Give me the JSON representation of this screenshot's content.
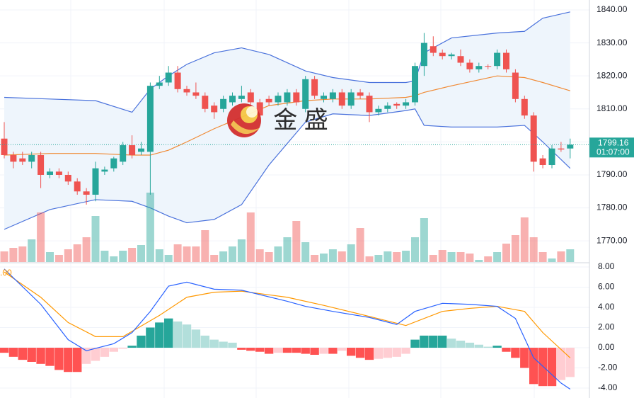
{
  "watermark": "金 盛",
  "chart_data": [
    {
      "type": "candlestick",
      "open": [
        1801,
        1796,
        1795,
        1794,
        1796,
        1790,
        1791,
        1790,
        1788,
        1785,
        1784,
        1791,
        1792,
        1794,
        1799,
        1797,
        1797,
        1817,
        1818,
        1821,
        1816,
        1815,
        1814,
        1811,
        1810,
        1812,
        1813,
        1815,
        1812,
        1813,
        1812,
        1812,
        1815,
        1810,
        1819,
        1813,
        1813,
        1815,
        1811,
        1815,
        1814,
        1809,
        1810,
        1811.5,
        1811,
        1812,
        1823,
        1829,
        1827,
        1826,
        1826,
        1824,
        1822,
        1823,
        1823,
        1827,
        1821,
        1813,
        1808,
        1795,
        1793,
        1798,
        1798
      ],
      "high": [
        1806,
        1797,
        1797,
        1797,
        1797,
        1792,
        1792,
        1791,
        1789,
        1786,
        1794,
        1792.5,
        1795.5,
        1800,
        1802,
        1800,
        1818,
        1820,
        1823,
        1823,
        1817,
        1818,
        1815,
        1812,
        1814,
        1815,
        1817,
        1816,
        1813,
        1814,
        1815,
        1816,
        1816,
        1820,
        1820,
        1815,
        1816,
        1816,
        1816,
        1816,
        1815,
        1811,
        1812,
        1812,
        1813,
        1824,
        1833,
        1832,
        1828,
        1827,
        1828,
        1825,
        1824,
        1823.5,
        1828,
        1828,
        1822,
        1814,
        1809,
        1796,
        1799,
        1800,
        1801
      ],
      "low": [
        1795,
        1792,
        1793,
        1792,
        1786,
        1789,
        1789,
        1787,
        1784,
        1781,
        1782,
        1790,
        1791,
        1793,
        1795,
        1796,
        1784,
        1816,
        1817,
        1815,
        1814,
        1813,
        1809,
        1807,
        1809,
        1811,
        1812,
        1811,
        1807,
        1811,
        1811,
        1811,
        1811,
        1809,
        1813,
        1812,
        1812,
        1810,
        1810,
        1813,
        1806,
        1808,
        1809,
        1810,
        1810,
        1811,
        1820,
        1826,
        1825,
        1825,
        1823,
        1821,
        1821,
        1822,
        1822,
        1821,
        1812,
        1807,
        1791,
        1792,
        1792,
        1797,
        1795
      ],
      "close": [
        1796,
        1794,
        1794,
        1796,
        1790,
        1791,
        1790,
        1788,
        1785,
        1784,
        1792,
        1791.6,
        1795,
        1799,
        1796,
        1798,
        1817,
        1818,
        1821,
        1816,
        1815,
        1814,
        1810,
        1809,
        1813,
        1814,
        1814,
        1812,
        1808,
        1812,
        1814,
        1815,
        1812,
        1819,
        1814,
        1814,
        1815,
        1811,
        1815,
        1814,
        1809,
        1810,
        1811,
        1811,
        1812,
        1823,
        1830,
        1827,
        1826,
        1826.5,
        1824,
        1822,
        1823,
        1822.8,
        1827,
        1822,
        1813,
        1808,
        1794,
        1793,
        1798,
        1797.7,
        1799.16
      ],
      "volume": [
        15,
        20,
        22,
        32,
        70,
        14,
        10,
        18,
        25,
        35,
        65,
        16,
        8,
        16,
        20,
        24,
        98,
        18,
        10,
        25,
        22,
        22,
        45,
        10,
        15,
        22,
        32,
        70,
        18,
        14,
        22,
        35,
        58,
        28,
        10,
        12,
        18,
        15,
        25,
        48,
        8,
        10,
        15,
        14,
        16,
        35,
        62,
        10,
        17,
        14,
        14,
        12,
        3,
        8,
        14,
        26,
        38,
        63,
        35,
        14,
        5,
        15,
        18
      ],
      "bands": {
        "x": [
          0,
          5,
          10,
          14,
          16,
          18,
          20,
          23,
          26,
          29,
          33,
          36,
          40,
          44,
          45,
          46,
          49,
          54,
          57,
          59,
          62
        ],
        "upper": [
          1813.5,
          1813,
          1812.5,
          1809,
          1816,
          1820,
          1823.5,
          1827,
          1828.5,
          1826.5,
          1821.5,
          1819.5,
          1818,
          1818,
          1818.5,
          1827,
          1831.5,
          1833,
          1833.5,
          1837.5,
          1839.4
        ],
        "basis": [
          1796,
          1796.5,
          1796.5,
          1796,
          1796,
          1797.5,
          1800,
          1804,
          1807.5,
          1811,
          1812.5,
          1813,
          1813,
          1813.5,
          1814,
          1815,
          1817,
          1820,
          1819.5,
          1818,
          1815.5
        ],
        "lower": [
          1773.5,
          1779.5,
          1782.5,
          1782,
          1780,
          1777.5,
          1775.5,
          1776.5,
          1781,
          1793,
          1806,
          1808.5,
          1808,
          1809.5,
          1810,
          1805,
          1804.5,
          1804.5,
          1805,
          1800,
          1792
        ]
      },
      "ylim": [
        1763.6,
        1843
      ],
      "yticks": [
        {
          "value": 1770,
          "label": "1770.00"
        },
        {
          "value": 1780,
          "label": "1780.00"
        },
        {
          "value": 1790,
          "label": "1790.00"
        },
        {
          "value": 1800,
          "label": "1800.00"
        },
        {
          "value": 1810,
          "label": "1810.00"
        },
        {
          "value": 1820,
          "label": "1820.00"
        },
        {
          "value": 1830,
          "label": "1830.00"
        },
        {
          "value": 1840,
          "label": "1840.00"
        }
      ],
      "countdown": "01:07:00",
      "grid": true,
      "colors": {
        "up": "#26a69a",
        "down": "#ef5350",
        "band": "#4a72dc",
        "basis": "#f08a35",
        "band_fill": "#eef5fc"
      }
    },
    {
      "type": "macd",
      "histogram": [
        -0.5,
        -0.9,
        -1.2,
        -1.4,
        -1.6,
        -1.8,
        -2.2,
        -2.4,
        -2.4,
        -1.6,
        -1.3,
        -0.9,
        -0.4,
        -0.1,
        0.2,
        1.2,
        2.0,
        2.5,
        2.9,
        2.6,
        2.3,
        1.8,
        1.2,
        0.8,
        0.6,
        0.5,
        -0.2,
        -0.3,
        -0.4,
        -0.6,
        -0.5,
        -0.5,
        -0.5,
        -0.6,
        -0.7,
        -0.6,
        -0.6,
        -0.3,
        -0.8,
        -1.0,
        -1.2,
        -1.1,
        -1.0,
        -0.9,
        -0.6,
        0.8,
        1.2,
        1.2,
        1.2,
        0.9,
        0.7,
        0.5,
        0.3,
        0.1,
        0.2,
        -0.4,
        -1.0,
        -2.0,
        -3.6,
        -3.8,
        -3.8,
        -3.2,
        -2.9
      ],
      "macd": {
        "x": [
          0,
          4,
          7,
          9,
          12,
          14,
          16,
          18,
          20,
          23,
          26,
          31,
          33,
          36,
          40,
          43,
          45,
          48,
          51,
          54,
          56,
          58,
          61,
          62
        ],
        "values": [
          7.8,
          4.3,
          0.8,
          -0.3,
          0.4,
          1.5,
          3.6,
          6.1,
          6.5,
          5.8,
          5.7,
          4.6,
          4.1,
          3.6,
          3.0,
          2.3,
          3.6,
          4.4,
          4.3,
          4.1,
          2.9,
          -1.0,
          -3.5,
          -4.1
        ]
      },
      "signal": {
        "x": [
          0,
          4,
          7,
          10,
          13,
          17,
          20,
          23,
          26,
          31,
          35,
          40,
          44,
          48,
          51,
          54,
          57,
          59,
          62
        ],
        "values": [
          7.5,
          5.0,
          2.5,
          1.1,
          1.1,
          3.2,
          5.0,
          5.5,
          5.6,
          5.0,
          4.2,
          3.1,
          2.2,
          3.6,
          3.9,
          4.1,
          3.6,
          1.5,
          -1.0
        ]
      },
      "ylim": [
        -4.98,
        8.35
      ],
      "yticks": [
        {
          "value": -4,
          "label": "-4.00"
        },
        {
          "value": -2,
          "label": "-2.00"
        },
        {
          "value": 0,
          "label": "0.00"
        },
        {
          "value": 2,
          "label": "2.00"
        },
        {
          "value": 4,
          "label": "4.00"
        },
        {
          "value": 6,
          "label": "6.00"
        },
        {
          "value": 8,
          "label": "8.00"
        }
      ],
      "label": ".00",
      "grid": true,
      "colors": {
        "up": "#26a69a",
        "up_pale": "#b2dfdb",
        "down": "#ff5252",
        "down_pale": "#ffcdd2",
        "macd": "#2962ff",
        "signal": "#ff9800"
      }
    }
  ]
}
